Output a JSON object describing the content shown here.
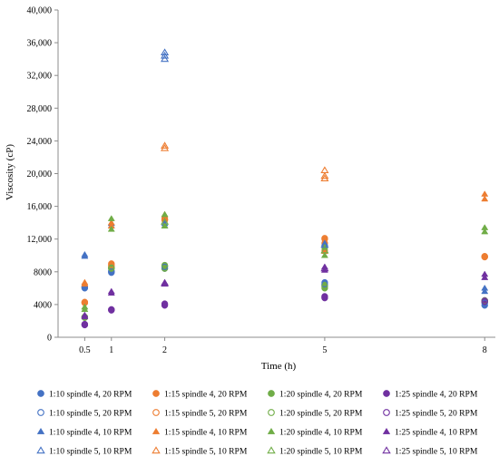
{
  "chart_data": {
    "type": "scatter",
    "xlabel": "Time (h)",
    "ylabel": "Viscosity (cP)",
    "xlim": [
      0,
      8.2
    ],
    "ylim": [
      0,
      40000
    ],
    "x_ticks": [
      0.5,
      1,
      2,
      5,
      8
    ],
    "x_tick_labels": [
      "0.5",
      "1",
      "2",
      "5",
      "8"
    ],
    "y_ticks": [
      0,
      4000,
      8000,
      12000,
      16000,
      20000,
      24000,
      28000,
      32000,
      36000,
      40000
    ],
    "y_tick_labels": [
      "0",
      "4000",
      "8000",
      "12,000",
      "16,000",
      "20,000",
      "24,000",
      "28,000",
      "32,000",
      "36,000",
      "40,000"
    ],
    "grid": false,
    "legend_position": "bottom",
    "series": [
      {
        "name": "1:10 spindle 4, 20 RPM",
        "color": "#4472c4",
        "marker": "circle",
        "filled": true,
        "points": [
          [
            0.5,
            6000
          ],
          [
            0.5,
            6200
          ],
          [
            1,
            7900
          ],
          [
            1,
            8100
          ],
          [
            2,
            8400
          ],
          [
            2,
            8700
          ],
          [
            5,
            6300
          ],
          [
            5,
            6700
          ],
          [
            8,
            3900
          ],
          [
            8,
            4400
          ]
        ]
      },
      {
        "name": "1:15 spindle 4, 20 RPM",
        "color": "#ed7d31",
        "marker": "circle",
        "filled": true,
        "points": [
          [
            0.5,
            4200
          ],
          [
            0.5,
            4300
          ],
          [
            1,
            8700
          ],
          [
            1,
            9000
          ],
          [
            2,
            14300
          ],
          [
            2,
            14500
          ],
          [
            5,
            11500
          ],
          [
            5,
            12000
          ],
          [
            8,
            9800
          ],
          [
            8,
            9900
          ]
        ]
      },
      {
        "name": "1:20 spindle 4, 20 RPM",
        "color": "#70ad47",
        "marker": "circle",
        "filled": true,
        "points": [
          [
            0.5,
            2400
          ],
          [
            0.5,
            2500
          ],
          [
            1,
            8400
          ],
          [
            1,
            8500
          ],
          [
            2,
            8400
          ],
          [
            2,
            8700
          ],
          [
            5,
            6000
          ],
          [
            5,
            6400
          ],
          [
            8,
            4400
          ],
          [
            8,
            4500
          ]
        ]
      },
      {
        "name": "1:25 spindle 4, 20 RPM",
        "color": "#7030a0",
        "marker": "circle",
        "filled": true,
        "points": [
          [
            0.5,
            1500
          ],
          [
            0.5,
            1600
          ],
          [
            1,
            3300
          ],
          [
            1,
            3400
          ],
          [
            2,
            3900
          ],
          [
            2,
            4100
          ],
          [
            5,
            4800
          ],
          [
            5,
            5000
          ],
          [
            8,
            4300
          ],
          [
            8,
            4500
          ]
        ]
      },
      {
        "name": "1:10 spindle 5, 20 RPM",
        "color": "#4472c4",
        "marker": "circle",
        "filled": false,
        "points": [
          [
            0.5,
            6100
          ],
          [
            1,
            8000
          ],
          [
            2,
            8600
          ],
          [
            5,
            6500
          ],
          [
            8,
            4200
          ]
        ]
      },
      {
        "name": "1:15 spindle 5, 20 RPM",
        "color": "#ed7d31",
        "marker": "circle",
        "filled": false,
        "points": [
          [
            0.5,
            4250
          ],
          [
            1,
            8850
          ],
          [
            2,
            14400
          ],
          [
            5,
            12100
          ],
          [
            8,
            9850
          ]
        ]
      },
      {
        "name": "1:20 spindle 5, 20 RPM",
        "color": "#70ad47",
        "marker": "circle",
        "filled": false,
        "points": [
          [
            0.5,
            2450
          ],
          [
            1,
            8450
          ],
          [
            2,
            8800
          ],
          [
            5,
            6200
          ],
          [
            8,
            4450
          ]
        ]
      },
      {
        "name": "1:25 spindle 5, 20 RPM",
        "color": "#7030a0",
        "marker": "circle",
        "filled": false,
        "points": [
          [
            0.5,
            1550
          ],
          [
            1,
            3350
          ],
          [
            2,
            4000
          ],
          [
            5,
            4900
          ],
          [
            8,
            4400
          ]
        ]
      },
      {
        "name": "1:10 spindle 4, 10 RPM",
        "color": "#4472c4",
        "marker": "triangle",
        "filled": true,
        "points": [
          [
            0.5,
            9900
          ],
          [
            0.5,
            10100
          ],
          [
            1,
            13600
          ],
          [
            1,
            13900
          ],
          [
            2,
            13600
          ],
          [
            2,
            13900
          ],
          [
            5,
            11200
          ],
          [
            5,
            11500
          ],
          [
            8,
            5600
          ],
          [
            8,
            6000
          ]
        ]
      },
      {
        "name": "1:15 spindle 4, 10 RPM",
        "color": "#ed7d31",
        "marker": "triangle",
        "filled": true,
        "points": [
          [
            0.5,
            6500
          ],
          [
            0.5,
            6700
          ],
          [
            1,
            13600
          ],
          [
            1,
            14000
          ],
          [
            2,
            14600
          ],
          [
            2,
            15000
          ],
          [
            5,
            10500
          ],
          [
            5,
            10800
          ],
          [
            8,
            16900
          ],
          [
            8,
            17500
          ]
        ]
      },
      {
        "name": "1:20 spindle 4, 10 RPM",
        "color": "#70ad47",
        "marker": "triangle",
        "filled": true,
        "points": [
          [
            0.5,
            3400
          ],
          [
            0.5,
            3700
          ],
          [
            1,
            13200
          ],
          [
            1,
            14500
          ],
          [
            2,
            13600
          ],
          [
            2,
            15000
          ],
          [
            5,
            10000
          ],
          [
            5,
            11000
          ],
          [
            8,
            12900
          ],
          [
            8,
            13400
          ]
        ]
      },
      {
        "name": "1:25 spindle 4, 10 RPM",
        "color": "#7030a0",
        "marker": "triangle",
        "filled": true,
        "points": [
          [
            0.5,
            2500
          ],
          [
            0.5,
            2700
          ],
          [
            1,
            5400
          ],
          [
            1,
            5600
          ],
          [
            2,
            6500
          ],
          [
            2,
            6700
          ],
          [
            5,
            8200
          ],
          [
            5,
            8600
          ],
          [
            8,
            7300
          ],
          [
            8,
            7700
          ]
        ]
      },
      {
        "name": "1:10 spindle 5, 10 RPM",
        "color": "#4472c4",
        "marker": "triangle",
        "filled": false,
        "points": [
          [
            2,
            34000
          ],
          [
            2,
            34400
          ],
          [
            2,
            34800
          ],
          [
            5,
            11300
          ]
        ]
      },
      {
        "name": "1:15 spindle 5, 10 RPM",
        "color": "#ed7d31",
        "marker": "triangle",
        "filled": false,
        "points": [
          [
            2,
            23100
          ],
          [
            2,
            23400
          ],
          [
            5,
            19400
          ],
          [
            5,
            19700
          ],
          [
            5,
            20400
          ]
        ]
      },
      {
        "name": "1:20 spindle 5, 10 RPM",
        "color": "#70ad47",
        "marker": "triangle",
        "filled": false,
        "points": [
          [
            2,
            14100
          ],
          [
            5,
            10600
          ]
        ]
      },
      {
        "name": "1:25 spindle 5, 10 RPM",
        "color": "#7030a0",
        "marker": "triangle",
        "filled": false,
        "points": [
          [
            2,
            6600
          ],
          [
            5,
            8400
          ]
        ]
      }
    ]
  }
}
